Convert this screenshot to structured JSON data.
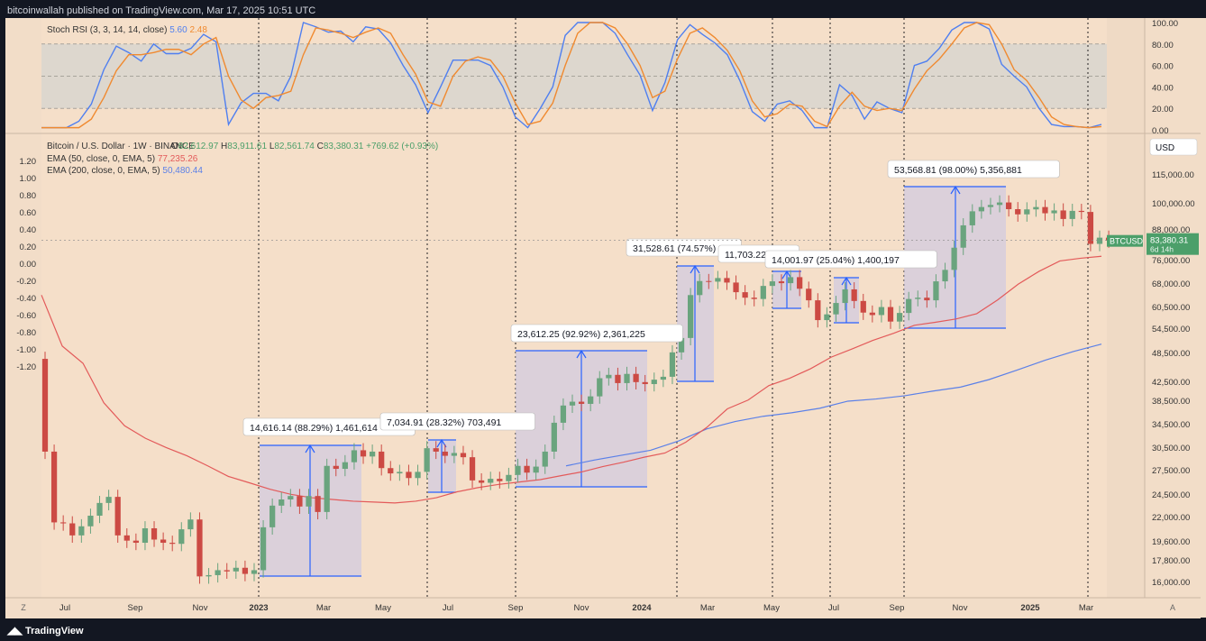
{
  "header": {
    "published": "bitcoinwallah published on TradingView.com, Mar 17, 2025 10:51 UTC"
  },
  "footer": {
    "brand": "TradingView"
  },
  "colors": {
    "bg": "#f5dfc9",
    "up": "#6aa47e",
    "down": "#cc4a44",
    "rsi_k": "#4f7ff0",
    "rsi_d": "#f08a30",
    "ema50": "#e35a5a",
    "ema200": "#5b80e8",
    "measure": "#2962ff"
  },
  "chart_data": [
    {
      "type": "line",
      "panel": "stoch-rsi",
      "legend": {
        "name": "Stoch RSI (3, 3, 14, 14, close)",
        "k_value": "5.60",
        "d_value": "2.48"
      },
      "ylim": [
        0,
        100
      ],
      "y_ticks": [
        "100.00",
        "80.00",
        "60.00",
        "40.00",
        "20.00",
        "0.00"
      ],
      "band": [
        20,
        80
      ],
      "series": [
        {
          "key": "k",
          "values": [
            2,
            2,
            2,
            8,
            24,
            56,
            78,
            72,
            64,
            80,
            71,
            71,
            76,
            89,
            82,
            5,
            25,
            34,
            34,
            27,
            50,
            100,
            96,
            91,
            92,
            82,
            96,
            94,
            81,
            60,
            42,
            16,
            40,
            65,
            65,
            65,
            60,
            40,
            12,
            2,
            20,
            40,
            88,
            100,
            100,
            100,
            90,
            70,
            51,
            18,
            44,
            84,
            98,
            89,
            81,
            70,
            46,
            17,
            8,
            24,
            27,
            18,
            2,
            2,
            42,
            32,
            10,
            26,
            20,
            16,
            60,
            64,
            76,
            93,
            100,
            100,
            94,
            61,
            50,
            40,
            20,
            5,
            3,
            3,
            2,
            5
          ]
        },
        {
          "key": "d",
          "values": [
            2,
            2,
            2,
            2,
            10,
            30,
            55,
            70,
            70,
            72,
            75,
            75,
            70,
            80,
            86,
            50,
            28,
            20,
            30,
            32,
            36,
            70,
            95,
            93,
            90,
            86,
            91,
            95,
            90,
            70,
            52,
            26,
            22,
            50,
            64,
            68,
            65,
            50,
            25,
            5,
            8,
            25,
            60,
            90,
            100,
            100,
            95,
            80,
            60,
            30,
            36,
            66,
            90,
            95,
            86,
            74,
            55,
            27,
            12,
            15,
            24,
            22,
            8,
            3,
            22,
            35,
            22,
            18,
            20,
            18,
            38,
            55,
            66,
            80,
            95,
            100,
            98,
            80,
            56,
            46,
            30,
            12,
            5,
            3,
            2,
            3
          ]
        }
      ]
    },
    {
      "type": "candlestick",
      "panel": "price",
      "title": "Bitcoin / U.S. Dollar · 1W · BINANCE",
      "ohlc_legend": {
        "o_label": "O",
        "o": "82,612.97",
        "h_label": "H",
        "h": "83,911.61",
        "l_label": "L",
        "l": "82,561.74",
        "c_label": "C",
        "c": "83,380.31",
        "change": "+769.62 (+0.93%)"
      },
      "ema_legend": [
        {
          "name": "EMA (50, close, 0, EMA, 5)",
          "value": "77,235.26"
        },
        {
          "name": "EMA (200, close, 0, EMA, 5)",
          "value": "50,480.44"
        }
      ],
      "currency": "USD",
      "last_price": {
        "symbol": "BTCUSD",
        "price": "83,380.31",
        "countdown": "6d 14h"
      },
      "y_ticks_right": [
        "115,000.00",
        "100,000.00",
        "88,000.00",
        "76,000.00",
        "68,000.00",
        "60,500.00",
        "54,500.00",
        "48,500.00",
        "42,500.00",
        "38,500.00",
        "34,500.00",
        "30,500.00",
        "27,500.00",
        "24,500.00",
        "22,000.00",
        "19,600.00",
        "17,800.00",
        "16,000.00"
      ],
      "y_ticks_left": [
        "1.20",
        "1.00",
        "0.80",
        "0.60",
        "0.40",
        "0.20",
        "0.00",
        "-0.20",
        "-0.40",
        "-0.60",
        "-0.80",
        "-1.00",
        "-1.20"
      ],
      "x_ticks": [
        "Jul",
        "Sep",
        "Nov",
        "2023",
        "Mar",
        "May",
        "Jul",
        "Sep",
        "Nov",
        "2024",
        "Mar",
        "May",
        "Jul",
        "Sep",
        "Nov",
        "2025",
        "Mar"
      ],
      "closes": [
        30000,
        21300,
        21200,
        20000,
        20900,
        22000,
        23400,
        24100,
        20000,
        19500,
        19300,
        20700,
        19600,
        19300,
        19200,
        20600,
        21600,
        16400,
        16500,
        16900,
        16800,
        17100,
        16600,
        16900,
        20800,
        23100,
        23800,
        24200,
        23000,
        24200,
        22400,
        28000,
        27600,
        28500,
        30200,
        29300,
        30000,
        27700,
        27000,
        27200,
        26400,
        27200,
        30500,
        30000,
        29400,
        29800,
        29200,
        26100,
        25800,
        26300,
        26000,
        26800,
        28000,
        27100,
        27900,
        30000,
        34500,
        37500,
        38200,
        37800,
        39200,
        42800,
        43500,
        41800,
        43700,
        42000,
        41600,
        42500,
        43100,
        48500,
        52000,
        64000,
        68500,
        68300,
        69500,
        68000,
        64900,
        63200,
        62800,
        66900,
        68400,
        67800,
        69800,
        66000,
        62400,
        56700,
        58300,
        61600,
        65800,
        62200,
        58800,
        58100,
        60400,
        56300,
        58700,
        62800,
        63200,
        62400,
        68400,
        72300,
        80500,
        89700,
        96000,
        98000,
        99000,
        100200,
        97000,
        94600,
        96900,
        98000,
        95100,
        96400,
        92500,
        96200,
        95700,
        82000,
        84500,
        83380
      ],
      "ema50_values": [
        64000,
        50000,
        46000,
        38000,
        34000,
        32000,
        30600,
        29400,
        28000,
        26600,
        25800,
        25000,
        24400,
        24000,
        23800,
        23600,
        23500,
        23400,
        23600,
        24000,
        24700,
        25200,
        25600,
        25900,
        26200,
        26700,
        27200,
        27900,
        28500,
        29200,
        29800,
        31400,
        33700,
        36900,
        38500,
        41300,
        42800,
        44800,
        47400,
        49300,
        51400,
        53200,
        55300,
        56100,
        57000,
        58500,
        62500,
        67500,
        71800,
        75500,
        76500,
        77235
      ],
      "ema200_values": [
        28000,
        28800,
        29500,
        30200,
        31600,
        33500,
        34700,
        35600,
        36200,
        37000,
        38300,
        38700,
        39300,
        40200,
        41000,
        42500,
        44500,
        46700,
        48700,
        50480
      ],
      "measures": [
        {
          "label": "14,616.14 (88.29%) 1,461,614"
        },
        {
          "label": "7,034.91 (28.32%) 703,491"
        },
        {
          "label": "23,612.25 (92.92%) 2,361,225"
        },
        {
          "label": "31,528.61 (74.57%)"
        },
        {
          "label": "11,703.22 (1"
        },
        {
          "label": "14,001.97 (25.04%) 1,400,197"
        },
        {
          "label": "53,568.81 (98.00%) 5,356,881"
        }
      ]
    }
  ]
}
